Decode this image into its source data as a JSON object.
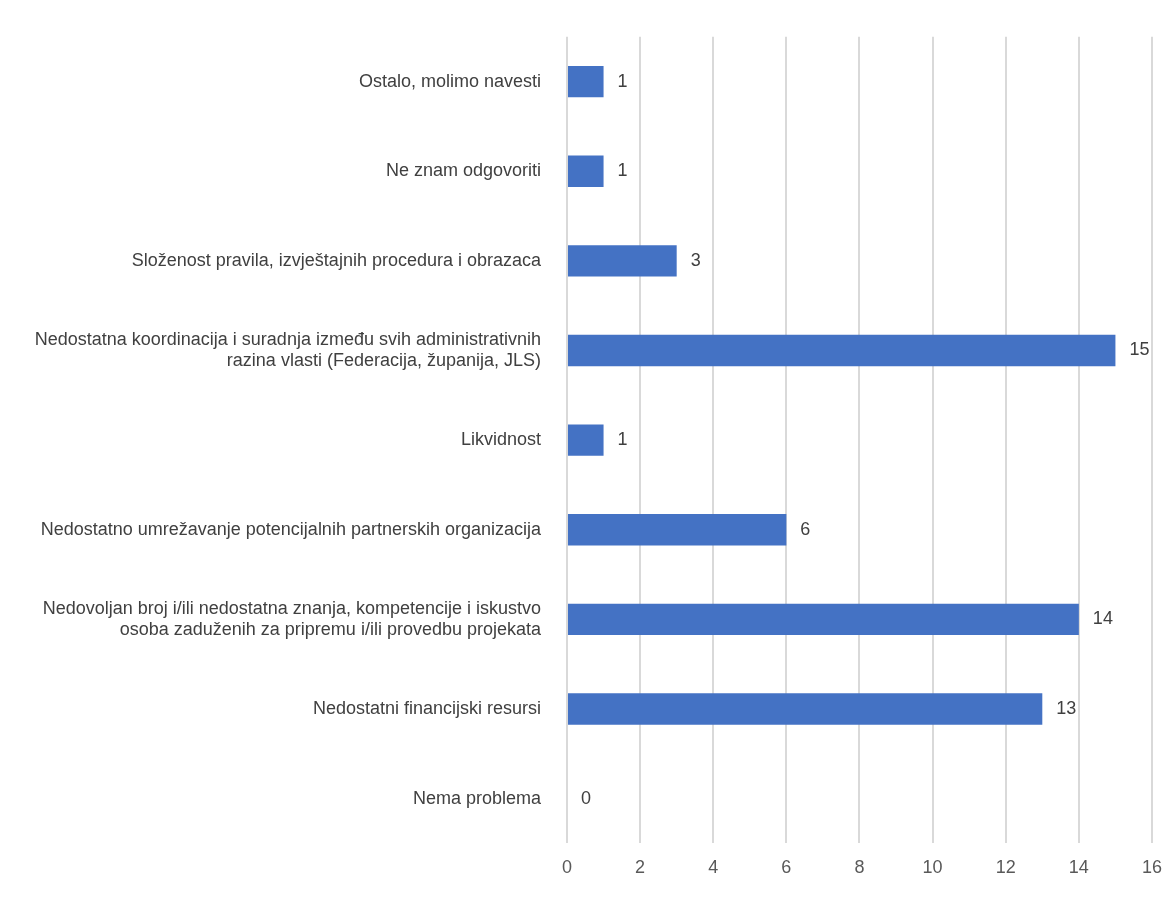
{
  "chart_data": {
    "type": "bar",
    "orientation": "horizontal",
    "categories": [
      "Ostalo, molimo navesti",
      "Ne znam odgovoriti",
      "Složenost pravila, izvještajnih procedura i obrazaca",
      "Nedostatna koordinacija i suradnja između svih administrativnih razina vlasti (Federacija, županija, JLS)",
      "Likvidnost",
      "Nedostatno umrežavanje potencijalnih partnerskih organizacija",
      "Nedovoljan broj i/ili nedostatna znanja, kompetencije i iskustvo osoba zaduženih za pripremu i/ili provedbu projekata",
      "Nedostatni financijski resursi",
      "Nema problema"
    ],
    "values": [
      1,
      1,
      3,
      15,
      1,
      6,
      14,
      13,
      0
    ],
    "color": "#4472c4",
    "xlim": [
      0,
      16
    ],
    "xticks": [
      0,
      2,
      4,
      6,
      8,
      10,
      12,
      14,
      16
    ],
    "grid": "x",
    "data_labels": true,
    "legend": false
  }
}
